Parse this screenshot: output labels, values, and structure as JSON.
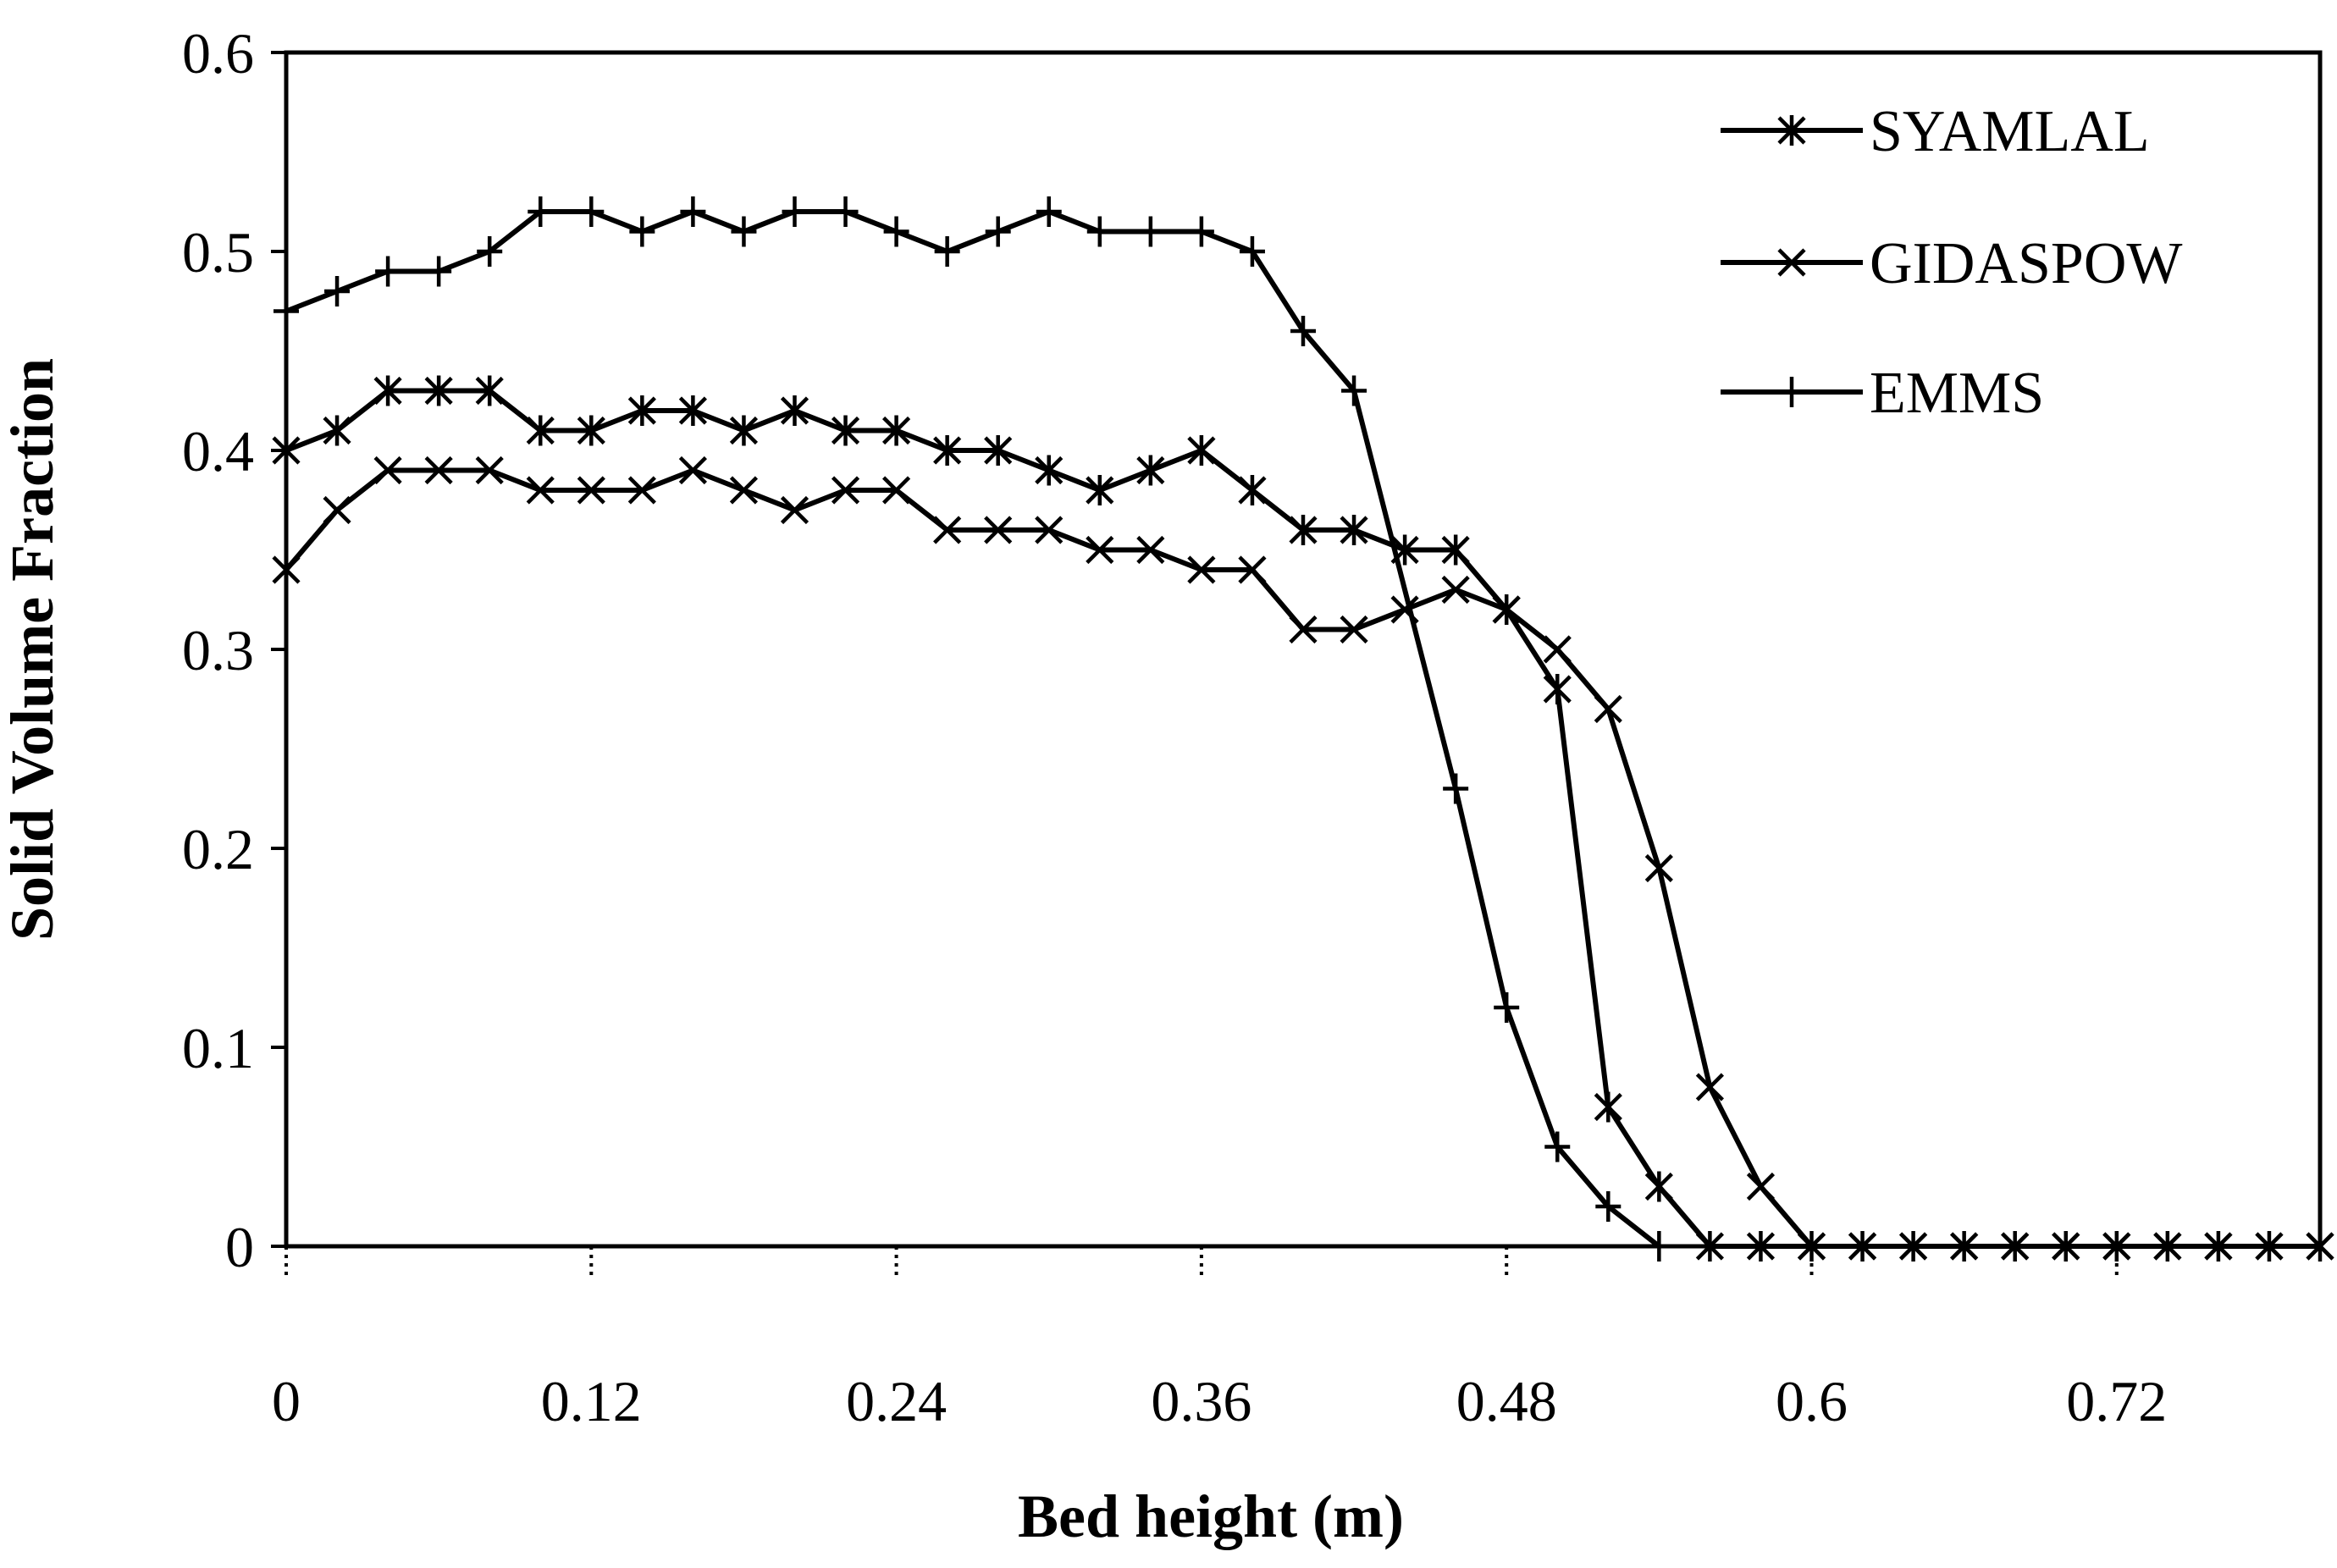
{
  "chart_data": {
    "type": "line",
    "title": "",
    "xlabel": "Bed height (m)",
    "ylabel": "Solid Volume Fraction",
    "xlim": [
      0,
      0.8
    ],
    "ylim": [
      0,
      0.6
    ],
    "grid": false,
    "legend_position": "top-right",
    "x_ticks": [
      0,
      0.12,
      0.24,
      0.36,
      0.48,
      0.6,
      0.72
    ],
    "x_tick_labels": [
      "0",
      "0.12",
      "0.24",
      "0.36",
      "0.48",
      "0.6",
      "0.72"
    ],
    "y_ticks": [
      0,
      0.1,
      0.2,
      0.3,
      0.4,
      0.5,
      0.6
    ],
    "y_tick_labels": [
      "0",
      "0.1",
      "0.2",
      "0.3",
      "0.4",
      "0.5",
      "0.6"
    ],
    "x": [
      0,
      0.02,
      0.04,
      0.06,
      0.08,
      0.1,
      0.12,
      0.14,
      0.16,
      0.18,
      0.2,
      0.22,
      0.24,
      0.26,
      0.28,
      0.3,
      0.32,
      0.34,
      0.36,
      0.38,
      0.4,
      0.42,
      0.44,
      0.46,
      0.48,
      0.5,
      0.52,
      0.54,
      0.56,
      0.58,
      0.6,
      0.62,
      0.64,
      0.66,
      0.68,
      0.7,
      0.72,
      0.74,
      0.76,
      0.78,
      0.8
    ],
    "series": [
      {
        "name": "SYAMLAL",
        "marker": "asterisk",
        "values": [
          0.4,
          0.41,
          0.43,
          0.43,
          0.43,
          0.41,
          0.41,
          0.42,
          0.42,
          0.41,
          0.42,
          0.41,
          0.41,
          0.4,
          0.4,
          0.39,
          0.38,
          0.39,
          0.4,
          0.38,
          0.36,
          0.36,
          0.35,
          0.35,
          0.32,
          0.28,
          0.07,
          0.03,
          0.0,
          0.0,
          0.0,
          0.0,
          0.0,
          0.0,
          0.0,
          0.0,
          0.0,
          0.0,
          0.0,
          0.0,
          0.0
        ]
      },
      {
        "name": "GIDASPOW",
        "marker": "x",
        "values": [
          0.34,
          0.37,
          0.39,
          0.39,
          0.39,
          0.38,
          0.38,
          0.38,
          0.39,
          0.38,
          0.37,
          0.38,
          0.38,
          0.36,
          0.36,
          0.36,
          0.35,
          0.35,
          0.34,
          0.34,
          0.31,
          0.31,
          0.32,
          0.33,
          0.32,
          0.3,
          0.27,
          0.19,
          0.08,
          0.03,
          0.0,
          0.0,
          0.0,
          0.0,
          0.0,
          0.0,
          0.0,
          0.0,
          0.0,
          0.0,
          0.0
        ]
      },
      {
        "name": "EMMS",
        "marker": "plus",
        "values": [
          0.47,
          0.48,
          0.49,
          0.49,
          0.5,
          0.52,
          0.52,
          0.51,
          0.52,
          0.51,
          0.52,
          0.52,
          0.51,
          0.5,
          0.51,
          0.52,
          0.51,
          0.51,
          0.51,
          0.5,
          0.46,
          0.43,
          null,
          0.23,
          0.12,
          0.05,
          0.02,
          0.0,
          null,
          null,
          null,
          null,
          null,
          null,
          null,
          null,
          null,
          null,
          null,
          null,
          null
        ]
      }
    ]
  }
}
